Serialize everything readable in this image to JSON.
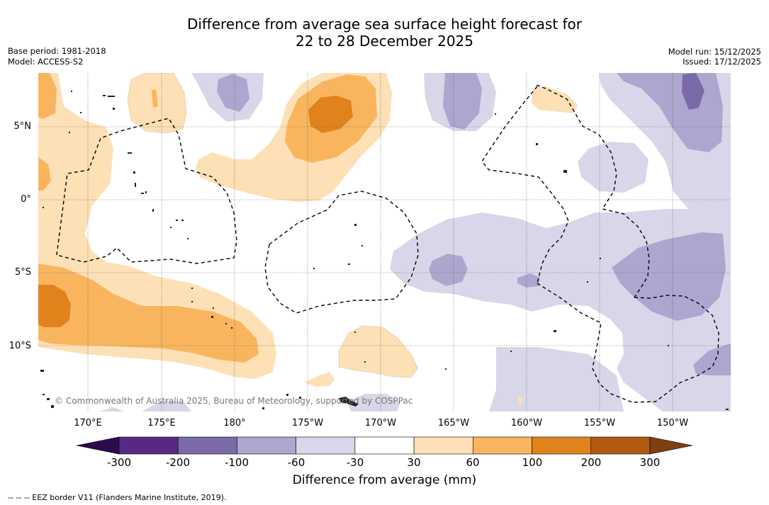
{
  "title": {
    "line1": "Difference from average sea surface height forecast for",
    "line2": "22 to 28 December 2025"
  },
  "meta_left": {
    "base_period": "Base period: 1981-2018",
    "model": "Model: ACCESS-S2"
  },
  "meta_right": {
    "model_run": "Model run: 15/12/2025",
    "issued": "Issued: 17/12/2025"
  },
  "map": {
    "lat_labels": [
      "5°N",
      "0°",
      "5°S",
      "10°S"
    ],
    "lon_labels": [
      "170°E",
      "175°E",
      "180°",
      "175°W",
      "170°W",
      "165°W",
      "160°W",
      "155°W",
      "150°W"
    ],
    "copyright": "© Commonwealth of Australia 2025, Bureau of Meteorology, supported by COSPPac"
  },
  "colorbar": {
    "ticks": [
      "-300",
      "-200",
      "-100",
      "-60",
      "-30",
      "30",
      "60",
      "100",
      "200",
      "300"
    ],
    "colors": [
      "#562a84",
      "#7a6aa8",
      "#ada6cf",
      "#d8d7e9",
      "#ffffff",
      "#fde0b5",
      "#f9b55e",
      "#e0831d",
      "#b05a12"
    ],
    "extend_low": "#2d0a4e",
    "extend_high": "#7f3f10",
    "label": "Difference from average (mm)"
  },
  "footer": "-- -- -- EEZ border V11 (Flanders Marine Institute, 2019)."
}
